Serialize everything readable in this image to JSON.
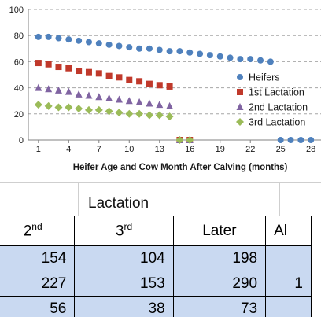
{
  "chart_data": {
    "type": "scatter",
    "xlabel": "Heifer Age and Cow Month After Calving (months)",
    "ylabel": "",
    "xlim": [
      0,
      29
    ],
    "ylim": [
      0,
      100
    ],
    "x_ticks": [
      1,
      4,
      7,
      10,
      13,
      16,
      19,
      22,
      25,
      28
    ],
    "y_ticks": [
      0,
      20,
      40,
      60,
      80,
      100
    ],
    "grid": "horizontal dashed",
    "legend_position": "right",
    "series": [
      {
        "name": "Heifers",
        "color": "#4f81bd",
        "marker": "circle",
        "x": [
          1,
          2,
          3,
          4,
          5,
          6,
          7,
          8,
          9,
          10,
          11,
          12,
          13,
          14,
          15,
          16,
          17,
          18,
          19,
          20,
          21,
          22,
          23,
          24,
          25,
          26,
          27,
          28
        ],
        "y": [
          79,
          79,
          78,
          77,
          76,
          75,
          74,
          73,
          72,
          71,
          70,
          70,
          69,
          68,
          68,
          67,
          66,
          65,
          64,
          63,
          62,
          62,
          61,
          60,
          0,
          0,
          0,
          0
        ]
      },
      {
        "name": "1st Lactation",
        "color": "#c0392b",
        "marker": "square",
        "x": [
          1,
          2,
          3,
          4,
          5,
          6,
          7,
          8,
          9,
          10,
          11,
          12,
          13,
          14,
          15,
          16
        ],
        "y": [
          59,
          58,
          56,
          55,
          53,
          52,
          51,
          49,
          48,
          46,
          45,
          43,
          42,
          41,
          0,
          0
        ]
      },
      {
        "name": "2nd Lactation",
        "color": "#8064a2",
        "marker": "triangle",
        "x": [
          1,
          2,
          3,
          4,
          5,
          6,
          7,
          8,
          9,
          10,
          11,
          12,
          13,
          14,
          15,
          16
        ],
        "y": [
          40,
          39,
          38,
          37,
          35,
          34,
          33,
          32,
          31,
          30,
          29,
          28,
          27,
          26,
          0,
          0
        ]
      },
      {
        "name": "3rd Lactation",
        "color": "#9bbb59",
        "marker": "diamond",
        "x": [
          1,
          2,
          3,
          4,
          5,
          6,
          7,
          8,
          9,
          10,
          11,
          12,
          13,
          14,
          15,
          16
        ],
        "y": [
          27,
          26,
          25,
          25,
          24,
          23,
          23,
          22,
          21,
          20,
          20,
          19,
          19,
          18,
          0,
          0
        ]
      }
    ]
  },
  "table": {
    "group_header": "Lactation",
    "headers": [
      {
        "base": "2",
        "sup": "nd"
      },
      {
        "base": "3",
        "sup": "rd"
      },
      {
        "base": "Later",
        "sup": ""
      },
      {
        "base": "Al",
        "sup": ""
      }
    ],
    "rows": [
      [
        "154",
        "104",
        "198",
        ""
      ],
      [
        "227",
        "153",
        "290",
        "1"
      ],
      [
        "56",
        "38",
        "73",
        ""
      ]
    ]
  }
}
